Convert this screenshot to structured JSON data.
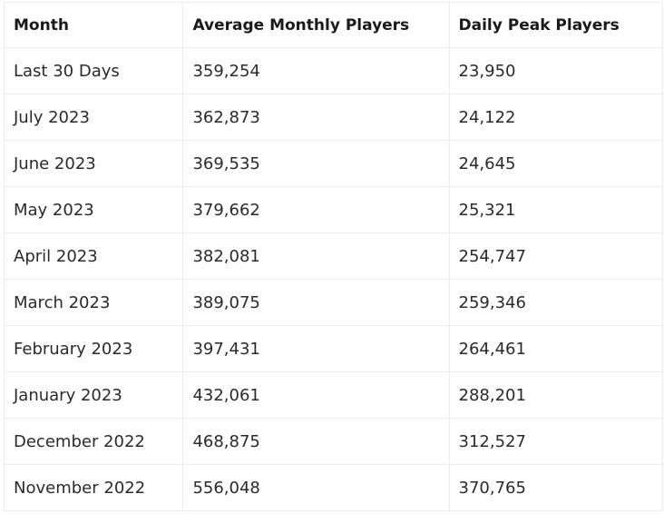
{
  "table": {
    "headers": [
      "Month",
      "Average Monthly Players",
      "Daily Peak Players"
    ],
    "rows": [
      [
        "Last 30 Days",
        "359,254",
        "23,950"
      ],
      [
        "July 2023",
        "362,873",
        "24,122"
      ],
      [
        "June 2023",
        "369,535",
        "24,645"
      ],
      [
        "May 2023",
        "379,662",
        "25,321"
      ],
      [
        "April 2023",
        "382,081",
        "254,747"
      ],
      [
        "March 2023",
        "389,075",
        "259,346"
      ],
      [
        "February 2023",
        "397,431",
        "264,461"
      ],
      [
        "January 2023",
        "432,061",
        "288,201"
      ],
      [
        "December 2022",
        "468,875",
        "312,527"
      ],
      [
        "November 2022",
        "556,048",
        "370,765"
      ]
    ]
  }
}
